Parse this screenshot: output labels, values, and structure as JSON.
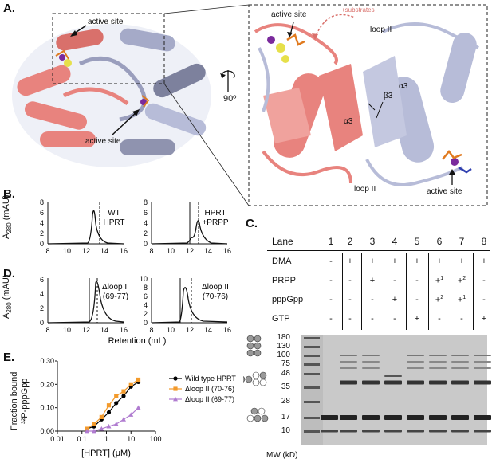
{
  "panels": {
    "A": {
      "letter": "A.",
      "labels": {
        "active_site_top": "active site",
        "active_site_bottom": "active site",
        "active_site_zoom_top": "active site",
        "active_site_zoom_bottom": "active site",
        "substrates": "+substrates",
        "loop2_top": "loop II",
        "loop2_bottom": "loop II",
        "alpha3_left": "α3",
        "alpha3_right": "α3",
        "beta3": "β3",
        "rotation": "90º"
      },
      "colors": {
        "salmon": "#e8837e",
        "lavender": "#b7bcd8",
        "slate": "#7d819d"
      }
    },
    "B": {
      "letter": "B.",
      "ylabel_main": "A",
      "ylabel_sub": "280",
      "ylabel_unit": "(mAU)",
      "plots": [
        {
          "label_line1": "WT",
          "label_line2": "HPRT",
          "yticks": [
            "0",
            "2",
            "4",
            "6",
            "8"
          ],
          "xticks": [
            "8",
            "10",
            "12",
            "14",
            "16"
          ]
        },
        {
          "label_line1": "HPRT",
          "label_line2": "+PRPP",
          "yticks": [
            "0",
            "2",
            "4",
            "6",
            "8"
          ],
          "xticks": [
            "8",
            "10",
            "12",
            "14",
            "16"
          ]
        }
      ]
    },
    "D": {
      "letter": "D.",
      "ylabel_main": "A",
      "ylabel_sub": "280",
      "ylabel_unit": "(mAU)",
      "xlabel": "Retention (mL)",
      "plots": [
        {
          "label_line1": "Δloop II",
          "label_line2": "(69-77)",
          "yticks": [
            "0",
            "2",
            "4",
            "6"
          ],
          "xticks": [
            "8",
            "10",
            "12",
            "14",
            "16"
          ]
        },
        {
          "label_line1": "Δloop II",
          "label_line2": "(70-76)",
          "yticks": [
            "0",
            "2",
            "4",
            "6",
            "8",
            "10"
          ],
          "xticks": [
            "8",
            "10",
            "12",
            "14",
            "16"
          ]
        }
      ]
    },
    "C": {
      "letter": "C.",
      "lane_header": "Lane",
      "lanes": [
        "1",
        "2",
        "3",
        "4",
        "5",
        "6",
        "7",
        "8"
      ],
      "rows": [
        {
          "name": "DMA",
          "values": [
            "-",
            "+",
            "+",
            "+",
            "+",
            "+",
            "+",
            "+"
          ]
        },
        {
          "name": "PRPP",
          "values": [
            "-",
            "-",
            "+",
            "-",
            "-",
            "+1",
            "+2",
            "-"
          ]
        },
        {
          "name": "pppGpp",
          "values": [
            "-",
            "-",
            "-",
            "+",
            "-",
            "+2",
            "+1",
            "-"
          ]
        },
        {
          "name": "GTP",
          "values": [
            "-",
            "-",
            "-",
            "-",
            "+",
            "-",
            "-",
            "+"
          ]
        }
      ],
      "mw_markers": [
        "180",
        "130",
        "100",
        "75",
        "48",
        "35",
        "28",
        "17",
        "10"
      ],
      "mw_label": "MW (kD)"
    },
    "E": {
      "letter": "E.",
      "ylabel_line1": "Fraction bound",
      "ylabel_line2": "³²P-pppGpp",
      "xlabel": "[HPRT] (μM)",
      "yticks": [
        "0.00",
        "0.10",
        "0.20",
        "0.30"
      ],
      "xticks": [
        "0.01",
        "0.1",
        "1",
        "10",
        "100"
      ],
      "legend": [
        "Wild type HPRT",
        "Δloop II (70-76)",
        "Δloop II (69-77)"
      ]
    }
  },
  "chart_data": [
    {
      "type": "line",
      "panel": "E",
      "xlabel": "[HPRT] (μM)",
      "ylabel": "Fraction bound ³²P-pppGpp",
      "xscale": "log",
      "xlim": [
        0.01,
        100
      ],
      "ylim": [
        0,
        0.3
      ],
      "legend_position": "right",
      "series": [
        {
          "name": "Wild type HPRT",
          "color": "#000000",
          "marker": "circle",
          "x": [
            0.16,
            0.31,
            0.63,
            1.25,
            2.5,
            5,
            10,
            20
          ],
          "y": [
            0.01,
            0.02,
            0.05,
            0.08,
            0.12,
            0.15,
            0.19,
            0.21
          ]
        },
        {
          "name": "Δloop II (70-76)",
          "color": "#f39a2b",
          "marker": "square",
          "x": [
            0.16,
            0.31,
            0.63,
            1.25,
            2.5,
            5,
            10,
            20
          ],
          "y": [
            0.01,
            0.03,
            0.06,
            0.11,
            0.15,
            0.17,
            0.2,
            0.22
          ]
        },
        {
          "name": "Δloop II (69-77)",
          "color": "#b07cd0",
          "marker": "triangle",
          "x": [
            0.16,
            0.31,
            0.63,
            1.25,
            2.5,
            5,
            10,
            20
          ],
          "y": [
            0.0,
            0.0,
            0.01,
            0.02,
            0.03,
            0.05,
            0.07,
            0.1
          ]
        }
      ]
    }
  ]
}
